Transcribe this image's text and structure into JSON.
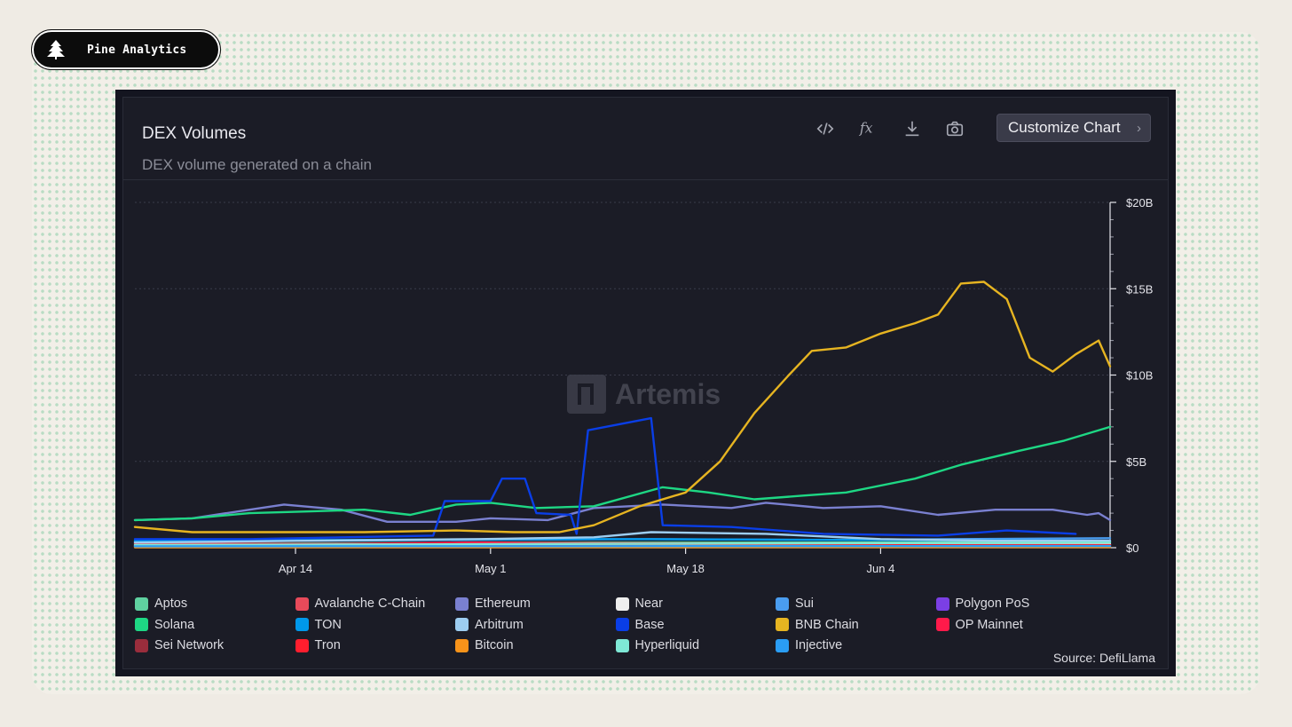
{
  "brand": {
    "name": "Pine Analytics",
    "icon": "pine-tree-icon"
  },
  "panel": {
    "title": "DEX Volumes",
    "subtitle": "DEX volume generated on a chain",
    "tools": [
      {
        "icon": "embed-code-icon"
      },
      {
        "icon": "formula-fx-icon"
      },
      {
        "icon": "download-icon"
      },
      {
        "icon": "camera-icon"
      }
    ],
    "customize_label": "Customize Chart",
    "watermark": "Artemis",
    "source": "Source: DefiLlama"
  },
  "chart_data": {
    "type": "line",
    "title": "DEX Volumes",
    "subtitle": "DEX volume generated on a chain",
    "xlabel": "",
    "ylabel": "",
    "x_ticks": [
      {
        "label": "Apr 14",
        "day": 14
      },
      {
        "label": "May 1",
        "day": 31
      },
      {
        "label": "May 18",
        "day": 48
      },
      {
        "label": "Jun 4",
        "day": 65
      }
    ],
    "x_range_days": [
      0,
      85
    ],
    "y_ticks": [
      {
        "label": "$0",
        "value": 0
      },
      {
        "label": "$5B",
        "value": 5
      },
      {
        "label": "$10B",
        "value": 10
      },
      {
        "label": "$15B",
        "value": 15
      },
      {
        "label": "$20B",
        "value": 20
      }
    ],
    "ylim": [
      0,
      20
    ],
    "y_unit": "billions USD",
    "grid": true,
    "legend_position": "bottom",
    "series": [
      {
        "name": "Aptos",
        "color": "#5fd1a0",
        "points": [
          [
            0,
            0.2
          ],
          [
            20,
            0.25
          ],
          [
            40,
            0.3
          ],
          [
            60,
            0.3
          ],
          [
            85,
            0.35
          ]
        ]
      },
      {
        "name": "Avalanche C-Chain",
        "color": "#e84a5a",
        "points": [
          [
            0,
            0.25
          ],
          [
            20,
            0.2
          ],
          [
            30,
            0.3
          ],
          [
            45,
            0.25
          ],
          [
            60,
            0.2
          ],
          [
            85,
            0.2
          ]
        ]
      },
      {
        "name": "Ethereum",
        "color": "#7a80d0",
        "points": [
          [
            0,
            1.6
          ],
          [
            5,
            1.7
          ],
          [
            10,
            2.2
          ],
          [
            13,
            2.5
          ],
          [
            18,
            2.2
          ],
          [
            22,
            1.5
          ],
          [
            28,
            1.5
          ],
          [
            31,
            1.7
          ],
          [
            36,
            1.6
          ],
          [
            40,
            2.3
          ],
          [
            46,
            2.5
          ],
          [
            52,
            2.3
          ],
          [
            55,
            2.6
          ],
          [
            60,
            2.3
          ],
          [
            65,
            2.4
          ],
          [
            70,
            1.9
          ],
          [
            75,
            2.2
          ],
          [
            80,
            2.2
          ],
          [
            83,
            1.9
          ],
          [
            84,
            2.0
          ],
          [
            85,
            1.6
          ]
        ]
      },
      {
        "name": "Near",
        "color": "#eeeeee",
        "points": [
          [
            0,
            0.1
          ],
          [
            30,
            0.15
          ],
          [
            45,
            0.2
          ],
          [
            60,
            0.15
          ],
          [
            85,
            0.2
          ]
        ]
      },
      {
        "name": "Sui",
        "color": "#4a9df0",
        "points": [
          [
            0,
            0.35
          ],
          [
            15,
            0.4
          ],
          [
            30,
            0.45
          ],
          [
            45,
            0.5
          ],
          [
            60,
            0.45
          ],
          [
            85,
            0.55
          ]
        ]
      },
      {
        "name": "Polygon PoS",
        "color": "#7b3fe4",
        "points": [
          [
            0,
            0.1
          ],
          [
            40,
            0.12
          ],
          [
            85,
            0.12
          ]
        ]
      },
      {
        "name": "Solana",
        "color": "#1ed784",
        "points": [
          [
            0,
            1.6
          ],
          [
            5,
            1.7
          ],
          [
            10,
            2.0
          ],
          [
            15,
            2.1
          ],
          [
            20,
            2.2
          ],
          [
            24,
            1.9
          ],
          [
            28,
            2.5
          ],
          [
            31,
            2.6
          ],
          [
            35,
            2.3
          ],
          [
            40,
            2.4
          ],
          [
            46,
            3.5
          ],
          [
            50,
            3.2
          ],
          [
            54,
            2.8
          ],
          [
            58,
            3.0
          ],
          [
            62,
            3.2
          ],
          [
            68,
            4.0
          ],
          [
            72,
            4.8
          ],
          [
            77,
            5.6
          ],
          [
            81,
            6.2
          ],
          [
            85,
            7.0
          ]
        ]
      },
      {
        "name": "TON",
        "color": "#0098ea",
        "points": [
          [
            0,
            0.4
          ],
          [
            20,
            0.45
          ],
          [
            40,
            0.5
          ],
          [
            60,
            0.45
          ],
          [
            85,
            0.4
          ]
        ]
      },
      {
        "name": "Arbitrum",
        "color": "#9dcdf0",
        "points": [
          [
            0,
            0.3
          ],
          [
            15,
            0.4
          ],
          [
            30,
            0.5
          ],
          [
            40,
            0.6
          ],
          [
            45,
            0.9
          ],
          [
            55,
            0.8
          ],
          [
            65,
            0.5
          ],
          [
            75,
            0.4
          ],
          [
            85,
            0.4
          ]
        ]
      },
      {
        "name": "Base",
        "color": "#0a3ee6",
        "points": [
          [
            0,
            0.5
          ],
          [
            10,
            0.5
          ],
          [
            26,
            0.7
          ],
          [
            27,
            2.7
          ],
          [
            31,
            2.7
          ],
          [
            32,
            4.0
          ],
          [
            34,
            4.0
          ],
          [
            35,
            2.0
          ],
          [
            38,
            1.9
          ],
          [
            38.5,
            0.8
          ],
          [
            39.5,
            6.8
          ],
          [
            45,
            7.5
          ],
          [
            46,
            1.3
          ],
          [
            52,
            1.2
          ],
          [
            60,
            0.8
          ],
          [
            70,
            0.7
          ],
          [
            76,
            1.0
          ],
          [
            82,
            0.8
          ]
        ]
      },
      {
        "name": "BNB Chain",
        "color": "#e6b421",
        "points": [
          [
            0,
            1.2
          ],
          [
            5,
            0.9
          ],
          [
            10,
            0.9
          ],
          [
            20,
            0.9
          ],
          [
            28,
            1.0
          ],
          [
            33,
            0.9
          ],
          [
            37,
            0.9
          ],
          [
            40,
            1.3
          ],
          [
            44,
            2.4
          ],
          [
            48,
            3.2
          ],
          [
            51,
            5.0
          ],
          [
            54,
            7.8
          ],
          [
            57,
            10.0
          ],
          [
            59,
            11.4
          ],
          [
            62,
            11.6
          ],
          [
            65,
            12.4
          ],
          [
            68,
            13.0
          ],
          [
            70,
            13.5
          ],
          [
            72,
            15.3
          ],
          [
            74,
            15.4
          ],
          [
            76,
            14.4
          ],
          [
            78,
            11.0
          ],
          [
            80,
            10.2
          ],
          [
            82,
            11.2
          ],
          [
            84,
            12.0
          ],
          [
            85,
            10.5
          ]
        ]
      },
      {
        "name": "OP Mainnet",
        "color": "#ff1a4a",
        "points": [
          [
            0,
            0.1
          ],
          [
            30,
            0.3
          ],
          [
            40,
            0.15
          ],
          [
            85,
            0.1
          ]
        ]
      },
      {
        "name": "Sei Network",
        "color": "#9a2d3c",
        "points": [
          [
            0,
            0.05
          ],
          [
            40,
            0.08
          ],
          [
            85,
            0.1
          ]
        ]
      },
      {
        "name": "Tron",
        "color": "#ff1e2e",
        "points": [
          [
            0,
            0.1
          ],
          [
            40,
            0.15
          ],
          [
            85,
            0.15
          ]
        ]
      },
      {
        "name": "Bitcoin",
        "color": "#f7931a",
        "points": [
          [
            0,
            0.02
          ],
          [
            85,
            0.03
          ]
        ]
      },
      {
        "name": "Hyperliquid",
        "color": "#7fe8d6",
        "points": [
          [
            0,
            0.15
          ],
          [
            30,
            0.2
          ],
          [
            60,
            0.25
          ],
          [
            85,
            0.3
          ]
        ]
      },
      {
        "name": "Injective",
        "color": "#2a9df4",
        "points": [
          [
            0,
            0.08
          ],
          [
            85,
            0.1
          ]
        ]
      }
    ]
  }
}
